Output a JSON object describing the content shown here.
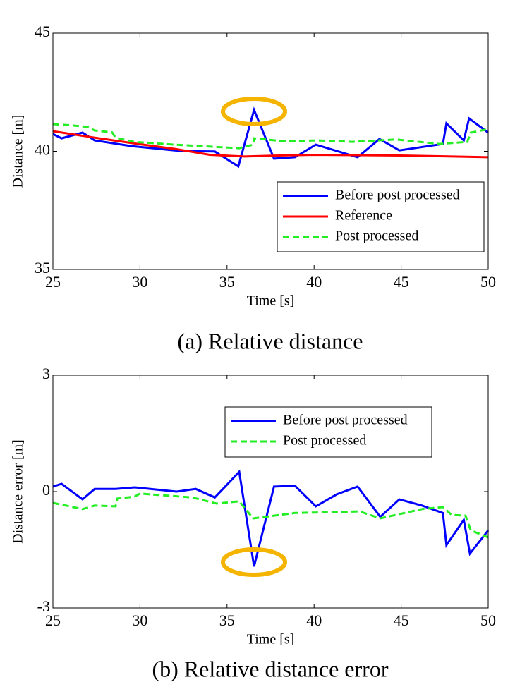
{
  "chart_data": [
    {
      "type": "line",
      "caption": "(a) Relative distance",
      "xlabel": "Time [s]",
      "ylabel": "Distance [m]",
      "xlim": [
        25,
        50
      ],
      "ylim": [
        35,
        45
      ],
      "xticks": [
        25,
        30,
        35,
        40,
        45,
        50
      ],
      "yticks": [
        35,
        40,
        45
      ],
      "grid": false,
      "legend": "lower right",
      "series": [
        {
          "name": "Before post processed",
          "color": "#0000ff",
          "dash": false,
          "x": [
            25,
            25.5,
            26.7,
            27.4,
            29.5,
            32.4,
            34.3,
            35.65,
            36.55,
            37.7,
            38.9,
            40.1,
            42.5,
            43.75,
            44.9,
            47.4,
            47.6,
            48.6,
            48.9,
            50
          ],
          "values": [
            40.73,
            40.55,
            40.79,
            40.46,
            40.22,
            40.01,
            39.99,
            39.36,
            41.75,
            39.69,
            39.75,
            40.28,
            39.75,
            40.52,
            40.04,
            40.31,
            41.18,
            40.46,
            41.39,
            40.79
          ]
        },
        {
          "name": "Reference",
          "color": "#ff0000",
          "dash": false,
          "x": [
            25,
            27,
            30,
            32,
            34,
            36,
            38,
            40,
            45,
            50
          ],
          "values": [
            40.85,
            40.62,
            40.3,
            40.1,
            39.85,
            39.78,
            39.82,
            39.85,
            39.82,
            39.75
          ]
        },
        {
          "name": "Post processed",
          "color": "#22ee22",
          "dash": true,
          "x": [
            25,
            26,
            27,
            27.4,
            28.4,
            28.6,
            29.65,
            32,
            34,
            35.7,
            36.5,
            36.55,
            38.2,
            40.2,
            42.2,
            44.7,
            47.2,
            48.8,
            49,
            50
          ],
          "values": [
            41.15,
            41.1,
            41.03,
            40.88,
            40.8,
            40.58,
            40.4,
            40.28,
            40.2,
            40.13,
            40.28,
            40.55,
            40.43,
            40.46,
            40.4,
            40.5,
            40.31,
            40.4,
            40.79,
            40.94
          ]
        }
      ]
    },
    {
      "type": "line",
      "caption": "(b) Relative distance error",
      "xlabel": "Time [s]",
      "ylabel": "Distance error [m]",
      "xlim": [
        25,
        50
      ],
      "ylim": [
        -3,
        3
      ],
      "xticks": [
        25,
        30,
        35,
        40,
        45,
        50
      ],
      "yticks": [
        -3,
        0,
        3
      ],
      "grid": false,
      "legend": "upper right",
      "series": [
        {
          "name": "Before post processed",
          "color": "#0000ff",
          "dash": false,
          "x": [
            25,
            25.5,
            26.7,
            27.4,
            28.6,
            29.7,
            32.1,
            33.2,
            34.3,
            35.7,
            36.55,
            37.7,
            38.9,
            40.1,
            41.3,
            42.5,
            43.8,
            44.9,
            46.2,
            47.4,
            47.6,
            48.6,
            48.95,
            50
          ],
          "values": [
            0.13,
            0.2,
            -0.2,
            0.07,
            0.07,
            0.11,
            0,
            0.07,
            -0.15,
            0.51,
            -1.93,
            0.13,
            0.15,
            -0.38,
            -0.07,
            0.13,
            -0.65,
            -0.2,
            -0.36,
            -0.55,
            -1.38,
            -0.73,
            -1.6,
            -1.0
          ]
        },
        {
          "name": "Post processed",
          "color": "#22ee22",
          "dash": true,
          "x": [
            25,
            26.7,
            27.4,
            28.6,
            28.7,
            29.7,
            30,
            33,
            34.4,
            35.7,
            36.5,
            38.9,
            41.2,
            42.6,
            43.8,
            46.2,
            47.4,
            47.9,
            48.7,
            49,
            50
          ],
          "values": [
            -0.29,
            -0.45,
            -0.36,
            -0.38,
            -0.18,
            -0.13,
            -0.05,
            -0.15,
            -0.31,
            -0.25,
            -0.69,
            -0.55,
            -0.53,
            -0.51,
            -0.69,
            -0.45,
            -0.4,
            -0.6,
            -0.62,
            -1.0,
            -1.18
          ]
        }
      ]
    }
  ]
}
